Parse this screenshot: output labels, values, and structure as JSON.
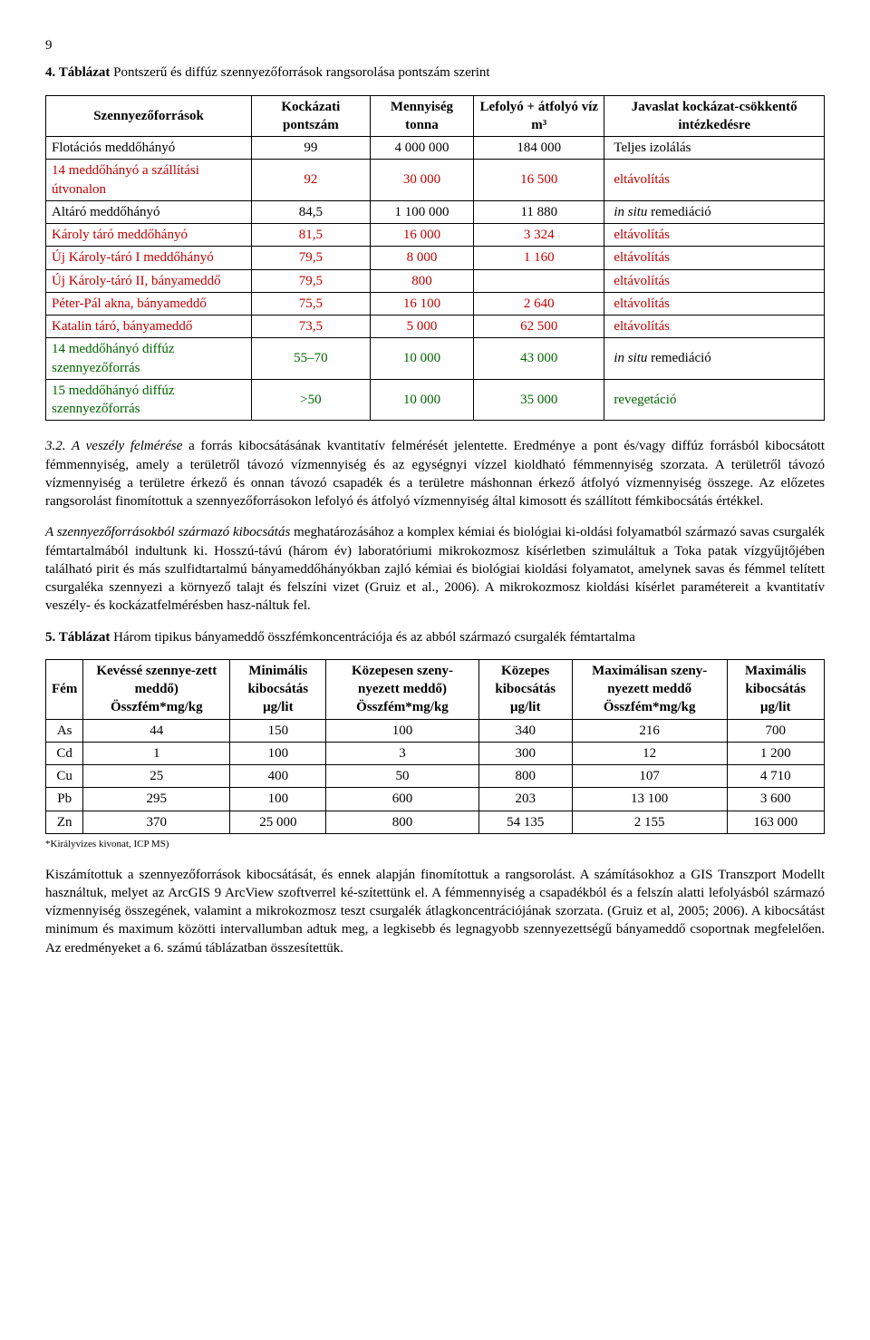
{
  "page_number": "9",
  "table4_caption_bold": "4. Táblázat",
  "table4_caption_rest": " Pontszerű és diffúz szennyezőforrások rangsorolása pontszám szerint",
  "table4": {
    "headers": [
      "Szennyezőforrások",
      "Kockázati pontszám",
      "Mennyiség tonna",
      "Lefolyó + átfolyó víz m³",
      "Javaslat kockázat-csökkentő intézkedésre"
    ],
    "rows": [
      {
        "name": "Flotációs meddőhányó",
        "score": "99",
        "qty": "4 000 000",
        "flow": "184 000",
        "action": "Teljes izolálás",
        "color": "black"
      },
      {
        "name": "14 meddőhányó a szállítási útvonalon",
        "score": "92",
        "qty": "30 000",
        "flow": "16 500",
        "action": "eltávolítás",
        "color": "red"
      },
      {
        "name": "Altáró meddőhányó",
        "score": "84,5",
        "qty": "1 100 000",
        "flow": "11 880",
        "action": "in situ remediáció",
        "color": "black",
        "action_italic": true
      },
      {
        "name": "Károly táró meddőhányó",
        "score": "81,5",
        "qty": "16 000",
        "flow": "3 324",
        "action": "eltávolítás",
        "color": "red"
      },
      {
        "name": "Új Károly-táró I meddőhányó",
        "score": "79,5",
        "qty": "8 000",
        "flow": "1 160",
        "action": "eltávolítás",
        "color": "red"
      },
      {
        "name": "Új Károly-táró II, bányameddő",
        "score": "79,5",
        "qty": "800",
        "flow": "",
        "action": "eltávolítás",
        "color": "red"
      },
      {
        "name": "Péter-Pál akna, bányameddő",
        "score": "75,5",
        "qty": "16 100",
        "flow": "2 640",
        "action": "eltávolítás",
        "color": "red"
      },
      {
        "name": "Katalin táró, bányameddő",
        "score": "73,5",
        "qty": "5 000",
        "flow": "62 500",
        "action": "eltávolítás",
        "color": "red"
      },
      {
        "name": "14 meddőhányó diffúz szennyezőforrás",
        "score": "55–70",
        "qty": "10 000",
        "flow": "43 000",
        "action": "in situ remediáció",
        "color": "black",
        "name_color": "green",
        "action_italic": true,
        "action_partial": "in situ",
        "action_rest": " remediáció"
      },
      {
        "name": "15 meddőhányó diffúz szennyezőforrás",
        "score": ">50",
        "qty": "10 000",
        "flow": "35 000",
        "action": "revegetáció",
        "color": "green",
        "name_color": "green"
      }
    ]
  },
  "p1_lead_italic": "3.2. A veszély felmérése",
  "p1_rest": " a forrás kibocsátásának kvantitatív felmérését jelentette. Eredménye a pont és/vagy diffúz forrásból kibocsátott fémmennyiség, amely a területről távozó vízmennyiség és az egységnyi vízzel kioldható fémmennyiség szorzata. A területről távozó vízmennyiség a területre érkező és onnan távozó csapadék és a területre máshonnan érkező átfolyó vízmennyiség összege. Az előzetes rangsorolást finomítottuk a szennyezőforrásokon lefolyó és átfolyó vízmennyiség által kimosott és szállított fémkibocsátás értékkel.",
  "p2_lead_italic": "A szennyezőforrásokból származó kibocsátás",
  "p2_rest": " meghatározásához a komplex kémiai és biológiai ki-oldási folyamatból származó savas csurgalék fémtartalmából indultunk ki. Hosszú-távú (három év) laboratóriumi mikrokozmosz kísérletben szimuláltuk a Toka patak vízgyűjtőjében található pirit és más szulfidtartalmú bányameddőhányókban zajló kémiai és biológiai kioldási folyamatot, amelynek savas és fémmel telített csurgaléka szennyezi a környező talajt és felszíni vizet (Gruiz et al., 2006). A mikrokozmosz kioldási kísérlet paramétereit a kvantitatív veszély- és kockázatfelmérésben hasz-náltuk fel.",
  "table5_caption_bold": "5. Táblázat",
  "table5_caption_rest": " Három tipikus bányameddő összfémkoncentrációja és az abból származó csurgalék fémtartalma",
  "table5": {
    "headers": [
      "Fém",
      "Kevéssé szennye-zett meddő) Összfém*mg/kg",
      "Minimális kibocsátás μg/lit",
      "Közepesen szeny-nyezett meddő) Összfém*mg/kg",
      "Közepes kibocsátás μg/lit",
      "Maximálisan szeny-nyezett meddő Összfém*mg/kg",
      "Maximális kibocsátás μg/lit"
    ],
    "rows": [
      [
        "As",
        "44",
        "150",
        "100",
        "340",
        "216",
        "700"
      ],
      [
        "Cd",
        "1",
        "100",
        "3",
        "300",
        "12",
        "1 200"
      ],
      [
        "Cu",
        "25",
        "400",
        "50",
        "800",
        "107",
        "4 710"
      ],
      [
        "Pb",
        "295",
        "100",
        "600",
        "203",
        "13 100",
        "3 600"
      ],
      [
        "Zn",
        "370",
        "25 000",
        "800",
        "54 135",
        "2 155",
        "163 000"
      ]
    ]
  },
  "footnote": "*Királyvizes kivonat, ICP MS)",
  "p3": "Kiszámítottuk a szennyezőforrások kibocsátását, és ennek alapján finomítottuk a rangsorolást. A számításokhoz a GIS Transzport Modellt használtuk, melyet az ArcGIS 9 ArcView szoftverrel ké-szítettünk el. A fémmennyiség a csapadékból és a felszín alatti lefolyásból származó vízmennyiség összegének, valamint a mikrokozmosz teszt csurgalék átlagkoncentrációjának szorzata. (Gruiz et al, 2005; 2006). A kibocsátást minimum és maximum közötti intervallumban adtuk meg, a legkisebb és legnagyobb szennyezettségű bányameddő csoportnak megfelelően. Az eredményeket a 6. számú táblázatban összesítettük."
}
